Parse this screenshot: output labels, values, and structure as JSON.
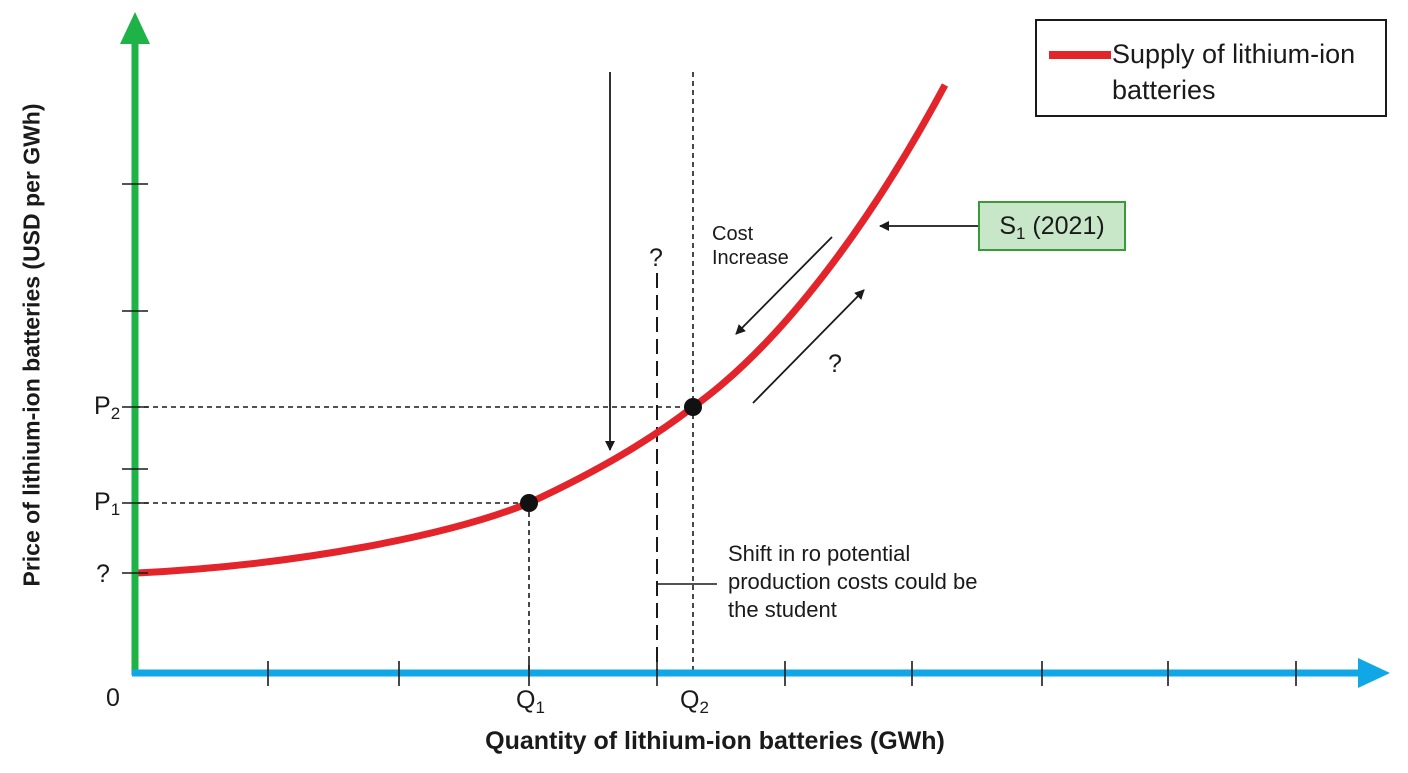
{
  "axes": {
    "y_label": "Price of lithium-ion batteries (USD per GWh)",
    "x_label": "Quantity of lithium-ion batteries (GWh)",
    "origin_label": "0",
    "y_axis_color": "#1db347",
    "x_axis_color": "#0fa7e6"
  },
  "legend": {
    "label": "Supply of lithium-ion batteries",
    "swatch_color": "#e3242b"
  },
  "curve": {
    "name": "S1 (2021)",
    "name_main": "S",
    "name_sub": "1",
    "name_rest": " (2021)",
    "color": "#e3242b",
    "box_fill": "#c8e6c8",
    "box_border": "#3a9a3a"
  },
  "price_labels": {
    "p2_main": "P",
    "p2_sub": "2",
    "p1_main": "P",
    "p1_sub": "1",
    "unknown": "?"
  },
  "quantity_labels": {
    "q1_main": "Q",
    "q1_sub": "1",
    "q2_main": "Q",
    "q2_sub": "2"
  },
  "annotations": {
    "cost_increase_line1": "Cost",
    "cost_increase_line2": "Increase",
    "dashed_question": "?",
    "arrow_question": "?",
    "shift_note": "Shift in ro potential production costs could be the student"
  }
}
